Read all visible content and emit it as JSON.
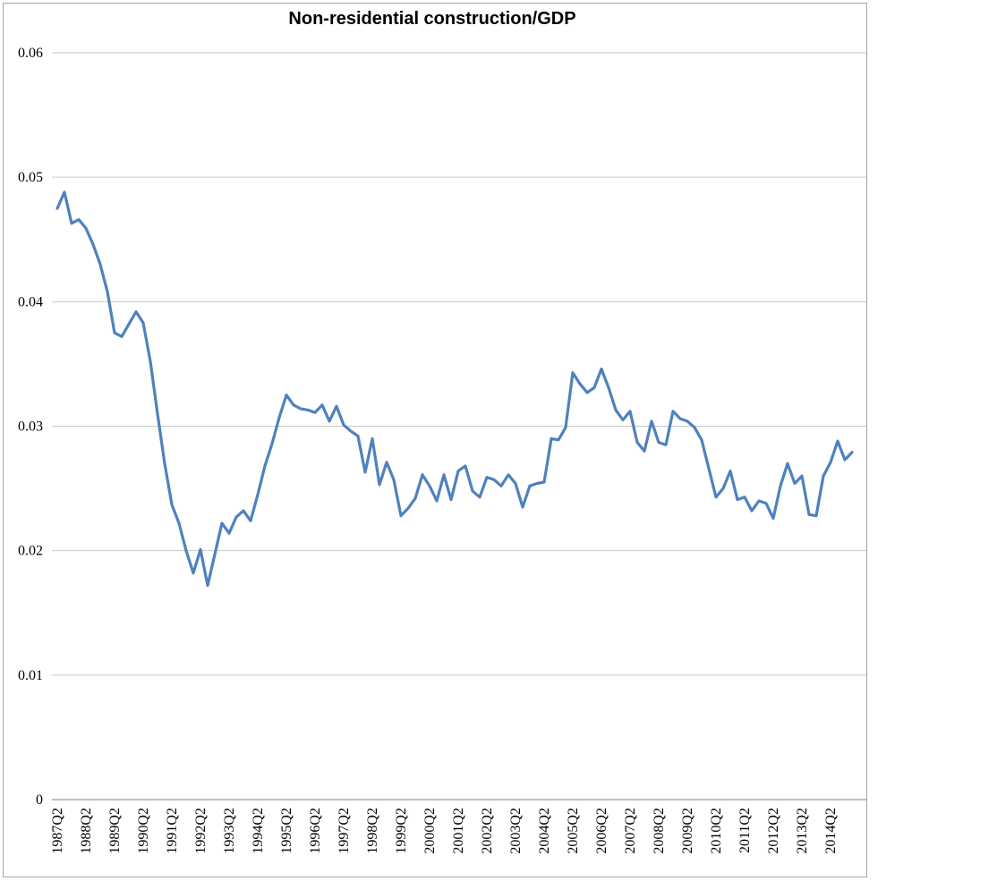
{
  "chart": {
    "title": "Non-residential construction/GDP",
    "colors": {
      "line": "#4F81BD",
      "gridline": "#c9c9c9",
      "axis_line": "#808080",
      "frame_border": "#a6a6a6",
      "text": "#000000",
      "background": "#ffffff"
    },
    "y_axis": {
      "tick_labels": [
        "0",
        "0.01",
        "0.02",
        "0.03",
        "0.04",
        "0.05",
        "0.06"
      ],
      "tick_values": [
        0,
        0.01,
        0.02,
        0.03,
        0.04,
        0.05,
        0.06
      ]
    },
    "x_axis": {
      "tick_labels": [
        "1987Q2",
        "1988Q2",
        "1989Q2",
        "1990Q2",
        "1991Q2",
        "1992Q2",
        "1993Q2",
        "1994Q2",
        "1995Q2",
        "1996Q2",
        "1997Q2",
        "1998Q2",
        "1999Q2",
        "2000Q2",
        "2001Q2",
        "2002Q2",
        "2003Q2",
        "2004Q2",
        "2005Q2",
        "2006Q2",
        "2007Q2",
        "2008Q2",
        "2009Q2",
        "2010Q2",
        "2011Q2",
        "2012Q2",
        "2013Q2",
        "2014Q2"
      ],
      "tick_every_n_points": 4
    }
  },
  "chart_data": {
    "type": "line",
    "title": "Non-residential construction/GDP",
    "x_start": "1987Q2",
    "x_frequency": "quarterly",
    "x_end": "2015Q1",
    "x_tick_labels": [
      "1987Q2",
      "1988Q2",
      "1989Q2",
      "1990Q2",
      "1991Q2",
      "1992Q2",
      "1993Q2",
      "1994Q2",
      "1995Q2",
      "1996Q2",
      "1997Q2",
      "1998Q2",
      "1999Q2",
      "2000Q2",
      "2001Q2",
      "2002Q2",
      "2003Q2",
      "2004Q2",
      "2005Q2",
      "2006Q2",
      "2007Q2",
      "2008Q2",
      "2009Q2",
      "2010Q2",
      "2011Q2",
      "2012Q2",
      "2013Q2",
      "2014Q2"
    ],
    "values": [
      0.0475,
      0.0488,
      0.0463,
      0.0466,
      0.0459,
      0.0446,
      0.043,
      0.0408,
      0.0375,
      0.0372,
      0.0382,
      0.0392,
      0.0383,
      0.0352,
      0.031,
      0.027,
      0.0237,
      0.0222,
      0.02,
      0.0182,
      0.0201,
      0.0172,
      0.0197,
      0.0222,
      0.0214,
      0.0227,
      0.0232,
      0.0224,
      0.0245,
      0.0268,
      0.0286,
      0.0307,
      0.0325,
      0.0317,
      0.0314,
      0.0313,
      0.0311,
      0.0317,
      0.0304,
      0.0316,
      0.0301,
      0.0296,
      0.0292,
      0.0263,
      0.029,
      0.0253,
      0.0271,
      0.0257,
      0.0228,
      0.0234,
      0.0242,
      0.0261,
      0.0252,
      0.024,
      0.0261,
      0.0241,
      0.0264,
      0.0268,
      0.0248,
      0.0243,
      0.0259,
      0.0257,
      0.0252,
      0.0261,
      0.0254,
      0.0235,
      0.0252,
      0.0254,
      0.0255,
      0.029,
      0.0289,
      0.0299,
      0.0343,
      0.0334,
      0.0327,
      0.0331,
      0.0346,
      0.0331,
      0.0313,
      0.0305,
      0.0312,
      0.0287,
      0.028,
      0.0304,
      0.0287,
      0.0285,
      0.0312,
      0.0306,
      0.0304,
      0.0299,
      0.0289,
      0.0266,
      0.0243,
      0.025,
      0.0264,
      0.0241,
      0.0243,
      0.0232,
      0.024,
      0.0238,
      0.0226,
      0.0252,
      0.027,
      0.0254,
      0.026,
      0.0229,
      0.0228,
      0.026,
      0.0271,
      0.0288,
      0.0273,
      0.0279
    ],
    "ylim": [
      0,
      0.06
    ],
    "yticks": [
      0,
      0.01,
      0.02,
      0.03,
      0.04,
      0.05,
      0.06
    ],
    "grid": "horizontal",
    "legend": "none",
    "line_color": "#4F81BD"
  }
}
